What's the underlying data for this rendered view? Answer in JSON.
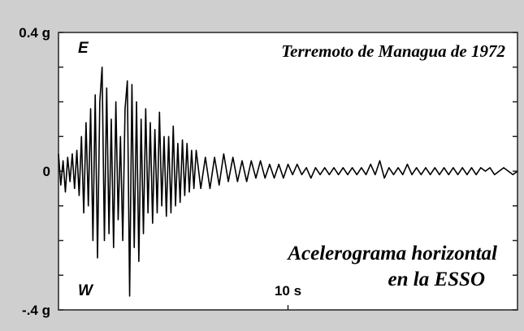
{
  "chart_data": {
    "type": "line",
    "title": "Terremoto de Managua de 1972",
    "annotations": [
      "E",
      "W",
      "Acelerograma horizontal",
      "en la ESSO"
    ],
    "color": "#000000",
    "xlim": [
      0,
      20
    ],
    "xticks": [
      {
        "value": 10,
        "label": "10 s"
      }
    ],
    "ylim": [
      -0.4,
      0.4
    ],
    "yticks": [
      {
        "value": 0.4,
        "label": "0.4 g"
      },
      0,
      {
        "value": -0.4,
        "label": "-.4 g"
      }
    ],
    "minor_yticks": [
      0.3,
      0.2,
      0.1,
      -0.1,
      -0.2,
      -0.3
    ],
    "x": [
      0,
      0.1,
      0.2,
      0.3,
      0.4,
      0.5,
      0.6,
      0.7,
      0.8,
      0.9,
      1,
      1.1,
      1.2,
      1.3,
      1.4,
      1.5,
      1.6,
      1.7,
      1.8,
      1.9,
      2,
      2.1,
      2.2,
      2.3,
      2.4,
      2.5,
      2.6,
      2.7,
      2.8,
      2.9,
      3,
      3.1,
      3.2,
      3.3,
      3.4,
      3.5,
      3.6,
      3.7,
      3.8,
      3.9,
      4,
      4.1,
      4.2,
      4.3,
      4.4,
      4.5,
      4.6,
      4.7,
      4.8,
      4.9,
      5,
      5.1,
      5.2,
      5.3,
      5.4,
      5.5,
      5.6,
      5.7,
      5.8,
      5.9,
      6,
      6.2,
      6.4,
      6.6,
      6.8,
      7,
      7.2,
      7.4,
      7.6,
      7.8,
      8,
      8.2,
      8.4,
      8.6,
      8.8,
      9,
      9.2,
      9.4,
      9.6,
      9.8,
      10,
      10.2,
      10.4,
      10.6,
      10.8,
      11,
      11.2,
      11.4,
      11.6,
      11.8,
      12,
      12.2,
      12.4,
      12.6,
      12.8,
      13,
      13.2,
      13.4,
      13.6,
      13.8,
      14,
      14.2,
      14.4,
      14.6,
      14.8,
      15,
      15.2,
      15.4,
      15.6,
      15.8,
      16,
      16.2,
      16.4,
      16.6,
      16.8,
      17,
      17.2,
      17.4,
      17.6,
      17.8,
      18,
      18.2,
      18.4,
      18.6,
      18.8,
      19,
      19.2,
      19.4,
      19.6,
      19.8,
      20
    ],
    "values": [
      0.05,
      -0.04,
      0.03,
      -0.06,
      0.04,
      -0.03,
      0.05,
      -0.05,
      0.06,
      -0.07,
      0.1,
      -0.12,
      0.14,
      -0.1,
      0.18,
      -0.2,
      0.22,
      -0.25,
      0.2,
      0.3,
      -0.2,
      0.24,
      -0.18,
      0.15,
      -0.22,
      0.2,
      -0.14,
      0.1,
      -0.2,
      0.18,
      0.26,
      -0.36,
      0.25,
      -0.22,
      0.2,
      -0.26,
      0.15,
      -0.18,
      0.18,
      -0.12,
      0.14,
      -0.15,
      0.12,
      -0.12,
      0.17,
      -0.1,
      0.1,
      -0.13,
      0.1,
      -0.12,
      0.13,
      -0.1,
      0.08,
      -0.09,
      0.09,
      -0.07,
      0.08,
      -0.06,
      0.06,
      -0.05,
      0.06,
      -0.05,
      0.04,
      -0.05,
      0.04,
      -0.04,
      0.05,
      -0.03,
      0.04,
      -0.03,
      0.03,
      -0.03,
      0.03,
      -0.02,
      0.03,
      -0.02,
      0.02,
      -0.02,
      0.02,
      -0.02,
      0.02,
      -0.01,
      0.02,
      -0.01,
      0.01,
      -0.02,
      0.01,
      -0.01,
      0.01,
      -0.01,
      0.01,
      -0.01,
      0.01,
      -0.01,
      0.01,
      -0.01,
      0.01,
      -0.01,
      0.02,
      -0.01,
      0.03,
      -0.02,
      0.01,
      -0.01,
      0.01,
      -0.01,
      0.02,
      -0.01,
      0.01,
      -0.01,
      0.01,
      -0.01,
      0.01,
      -0.01,
      0.01,
      -0.01,
      0.01,
      -0.01,
      0.01,
      -0.01,
      0.01,
      -0.01,
      0.01,
      0,
      0.01,
      -0.01,
      0,
      0.01,
      0,
      -0.01,
      0
    ]
  }
}
